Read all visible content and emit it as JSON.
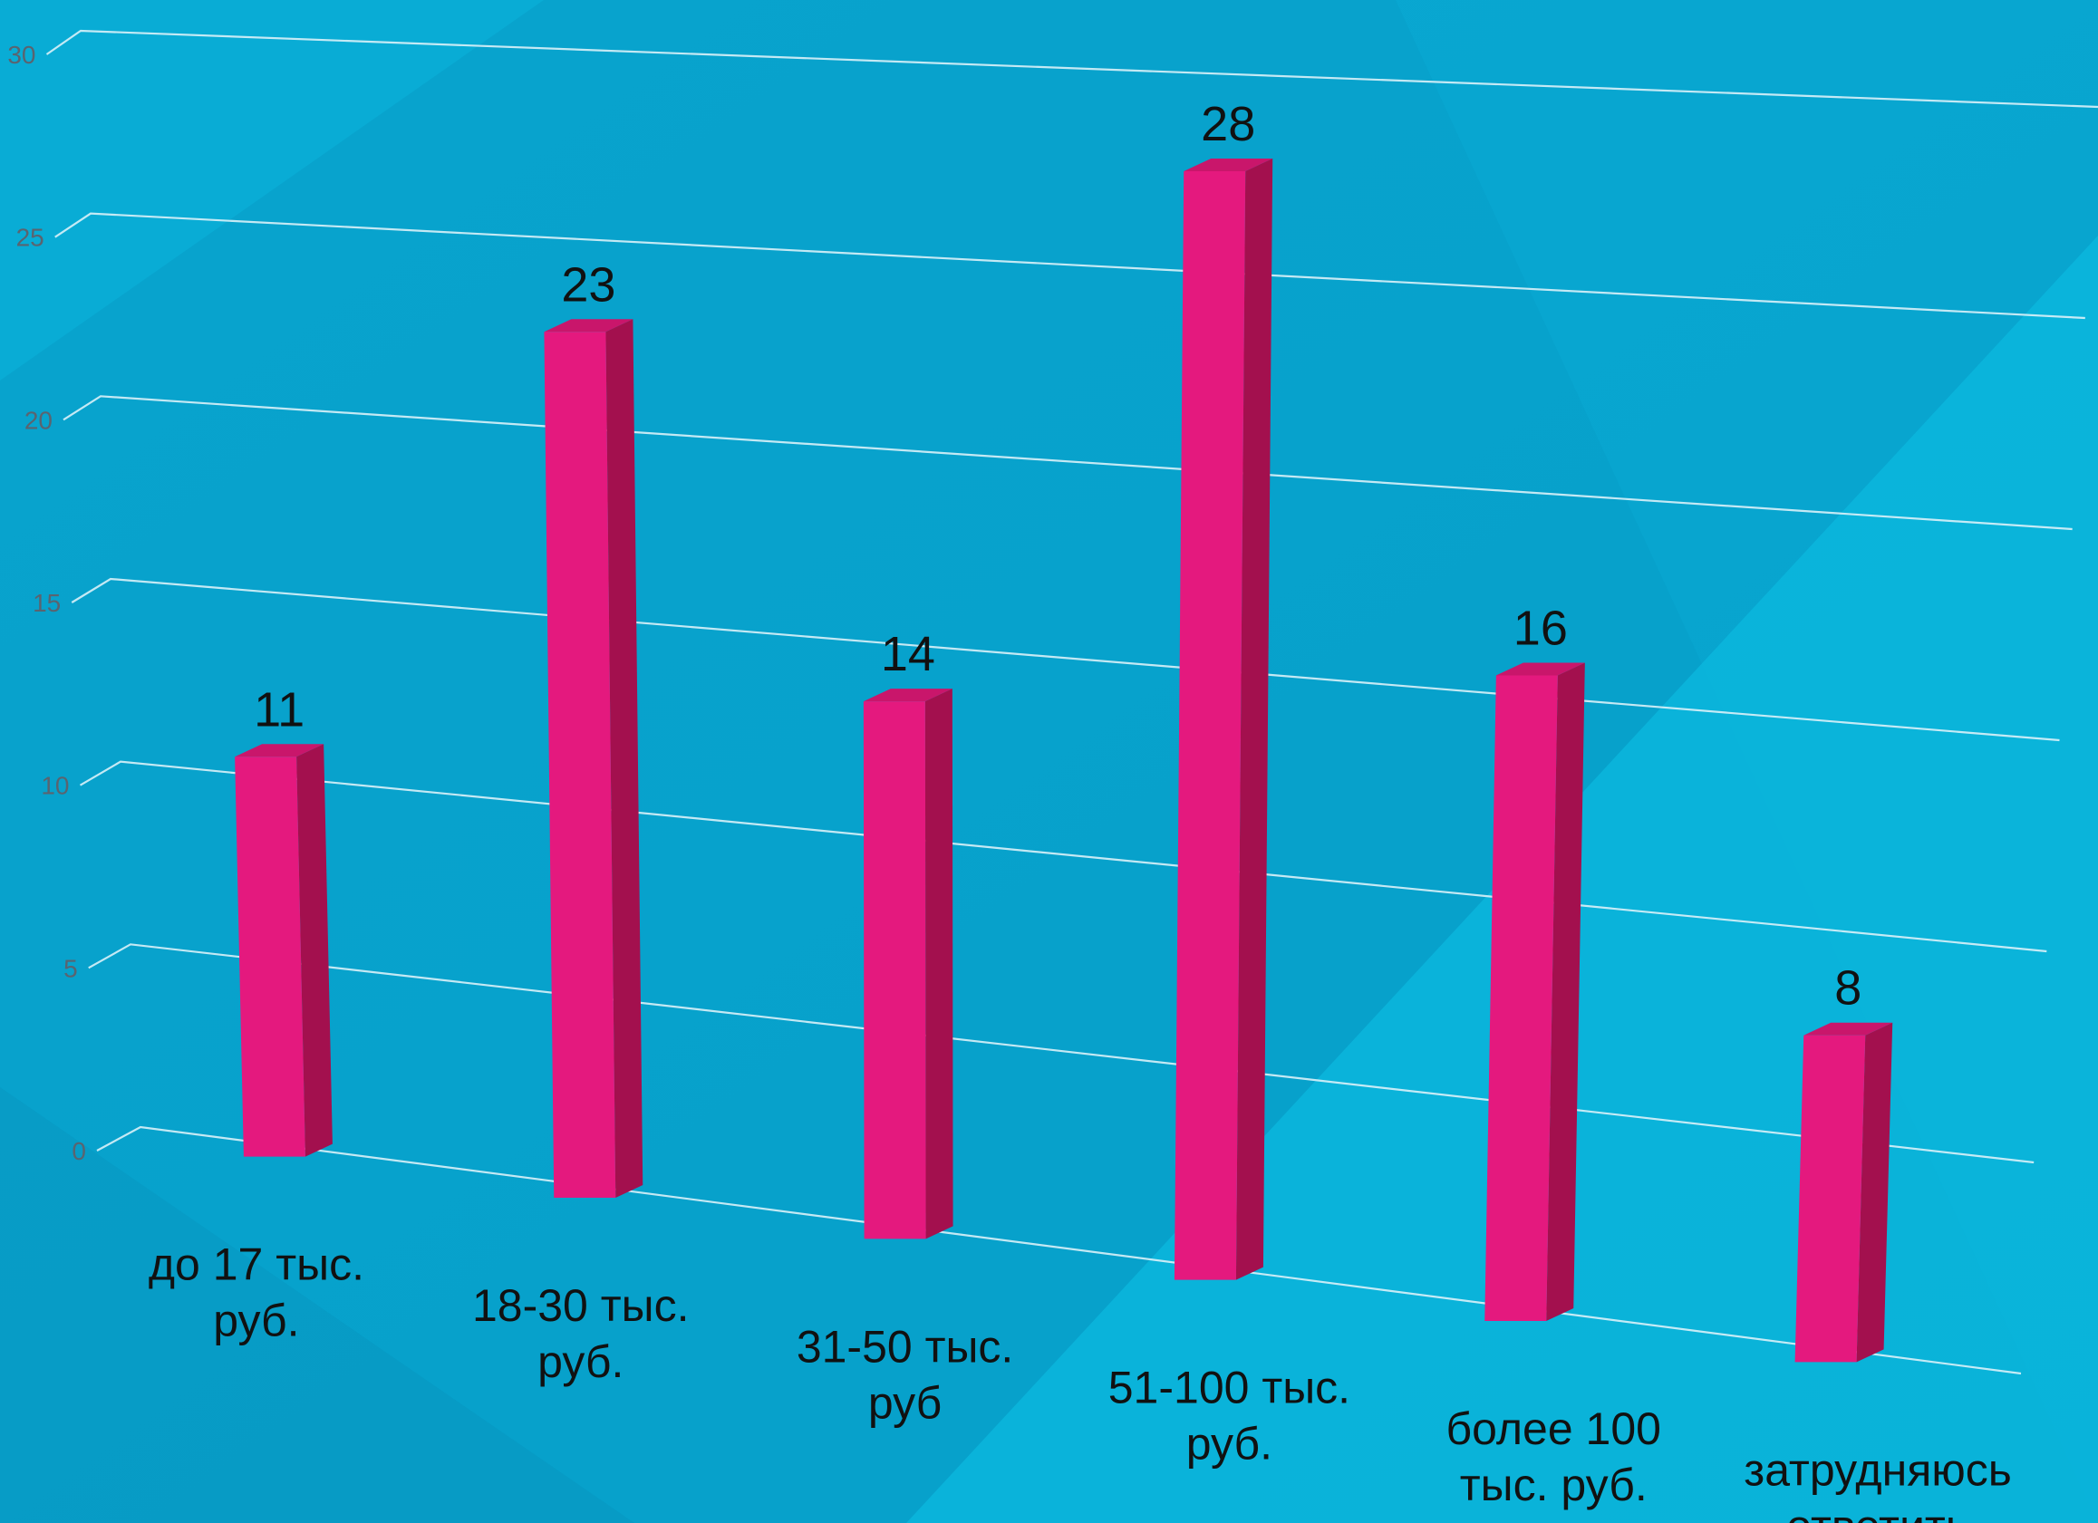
{
  "chart_data": {
    "type": "bar",
    "categories": [
      [
        "до 17 тыс.",
        "руб."
      ],
      [
        "18-30 тыс.",
        "руб."
      ],
      [
        "31-50 тыс.",
        "руб"
      ],
      [
        "51-100 тыс.",
        "руб."
      ],
      [
        "более 100",
        "тыс. руб."
      ],
      [
        "затрудняюсь",
        "ответить"
      ]
    ],
    "values": [
      11,
      23,
      14,
      28,
      16,
      8
    ],
    "yticks": [
      0,
      5,
      10,
      15,
      20,
      25,
      30
    ],
    "ylim": [
      0,
      30
    ],
    "grid": true,
    "three_d": true
  },
  "colors": {
    "background": "#0aaed6",
    "bar_front": "#e4197e",
    "bar_side": "#a3104e",
    "bar_top": "#c9166b",
    "gridline": "#d9f1f8"
  }
}
